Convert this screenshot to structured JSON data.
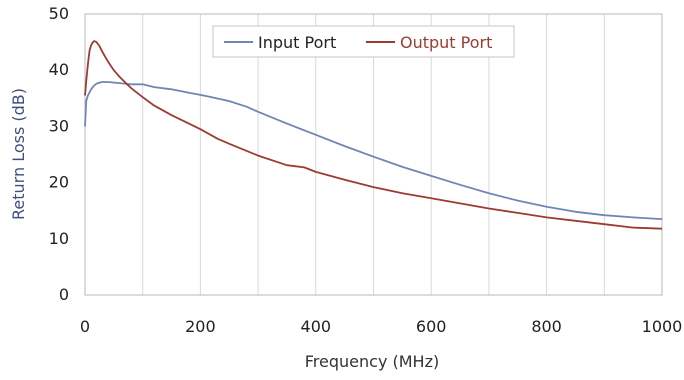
{
  "chart_data": {
    "type": "line",
    "title": "",
    "xlabel": "Frequency (MHz)",
    "ylabel": "Return Loss (dB)",
    "xlim": [
      0,
      1000
    ],
    "ylim": [
      0,
      50
    ],
    "x_ticks": [
      0,
      200,
      400,
      600,
      800,
      1000
    ],
    "y_ticks": [
      0,
      10,
      20,
      30,
      40,
      50
    ],
    "x_tick_labels": [
      "0",
      "200",
      "400",
      "600",
      "800",
      "1000"
    ],
    "y_tick_labels": [
      "0",
      "10",
      "20",
      "30",
      "40",
      "50"
    ],
    "grid": {
      "vertical": true,
      "horizontal": false
    },
    "legend": {
      "position": "top-center"
    },
    "series": [
      {
        "name": "Input Port",
        "color": "#6f86b3",
        "points": [
          [
            0,
            30
          ],
          [
            2,
            34.5
          ],
          [
            5,
            35.5
          ],
          [
            10,
            36.5
          ],
          [
            15,
            37.2
          ],
          [
            20,
            37.6
          ],
          [
            25,
            37.8
          ],
          [
            30,
            37.9
          ],
          [
            40,
            37.9
          ],
          [
            60,
            37.7
          ],
          [
            80,
            37.5
          ],
          [
            100,
            37.5
          ],
          [
            120,
            37.0
          ],
          [
            150,
            36.6
          ],
          [
            180,
            36.0
          ],
          [
            200,
            35.6
          ],
          [
            220,
            35.2
          ],
          [
            250,
            34.5
          ],
          [
            280,
            33.5
          ],
          [
            300,
            32.6
          ],
          [
            350,
            30.5
          ],
          [
            400,
            28.5
          ],
          [
            450,
            26.5
          ],
          [
            500,
            24.6
          ],
          [
            550,
            22.8
          ],
          [
            600,
            21.2
          ],
          [
            650,
            19.6
          ],
          [
            700,
            18.1
          ],
          [
            750,
            16.8
          ],
          [
            800,
            15.7
          ],
          [
            850,
            14.8
          ],
          [
            900,
            14.2
          ],
          [
            950,
            13.8
          ],
          [
            1000,
            13.5
          ]
        ]
      },
      {
        "name": "Output Port",
        "color": "#9b3b33",
        "points": [
          [
            0,
            35.5
          ],
          [
            2,
            38
          ],
          [
            4,
            40
          ],
          [
            6,
            42
          ],
          [
            8,
            43.5
          ],
          [
            10,
            44.3
          ],
          [
            13,
            44.9
          ],
          [
            16,
            45.2
          ],
          [
            20,
            45.0
          ],
          [
            25,
            44.3
          ],
          [
            30,
            43.3
          ],
          [
            40,
            41.5
          ],
          [
            50,
            40.0
          ],
          [
            60,
            38.8
          ],
          [
            70,
            37.8
          ],
          [
            80,
            36.8
          ],
          [
            100,
            35.2
          ],
          [
            120,
            33.7
          ],
          [
            150,
            32.0
          ],
          [
            180,
            30.5
          ],
          [
            200,
            29.5
          ],
          [
            230,
            27.8
          ],
          [
            250,
            26.9
          ],
          [
            300,
            24.8
          ],
          [
            350,
            23.1
          ],
          [
            380,
            22.7
          ],
          [
            400,
            21.9
          ],
          [
            450,
            20.5
          ],
          [
            500,
            19.2
          ],
          [
            550,
            18.1
          ],
          [
            600,
            17.2
          ],
          [
            650,
            16.3
          ],
          [
            700,
            15.4
          ],
          [
            750,
            14.6
          ],
          [
            800,
            13.8
          ],
          [
            850,
            13.2
          ],
          [
            900,
            12.6
          ],
          [
            950,
            12.0
          ],
          [
            1000,
            11.8
          ]
        ]
      }
    ]
  }
}
